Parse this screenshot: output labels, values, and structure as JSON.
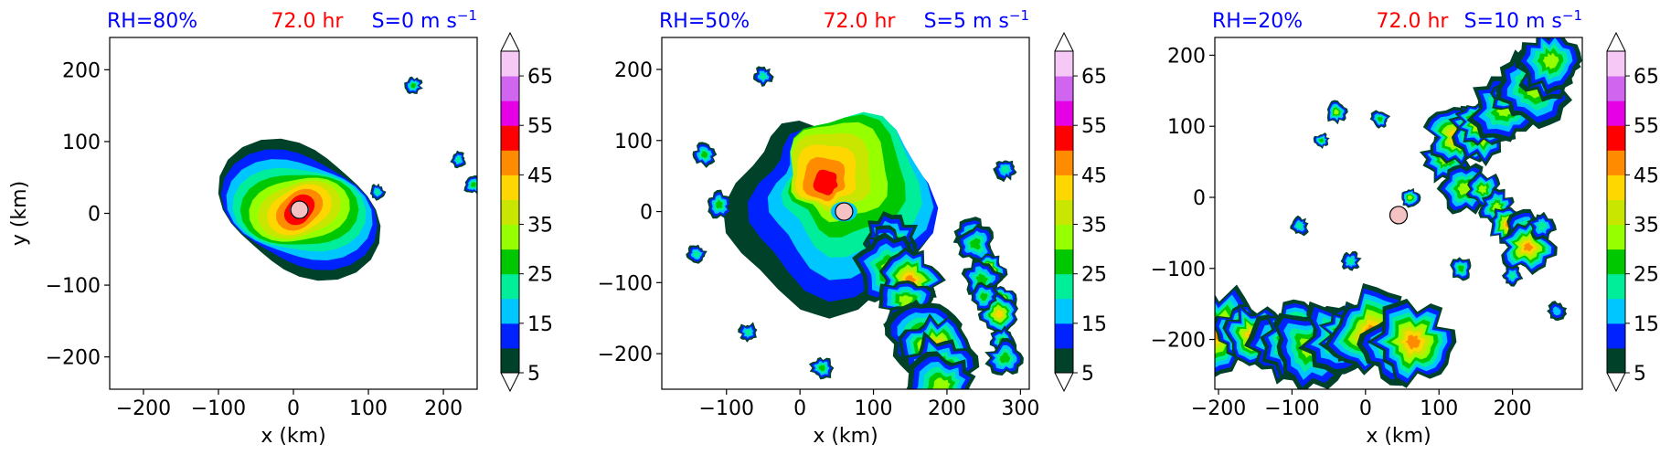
{
  "figure": {
    "panel_count": 3
  },
  "chart_data": [
    {
      "type": "heatmap",
      "title_left": "RH=80%",
      "title_center": "72.0 hr",
      "title_right_text": "S=0 m s",
      "title_right_exp": "−1",
      "xlabel": "x (km)",
      "ylabel": "y (km)",
      "xlim": [
        -245,
        245
      ],
      "ylim": [
        -245,
        245
      ],
      "xticks": [
        -200,
        -100,
        0,
        100,
        200
      ],
      "yticks": [
        -200,
        -100,
        0,
        100,
        200
      ],
      "xtick_labels": [
        "−200",
        "−100",
        "0",
        "100",
        "200"
      ],
      "ytick_labels": [
        "−200",
        "−100",
        "0",
        "100",
        "200"
      ],
      "center_marker": {
        "x": 8,
        "y": 5,
        "color": "#f4c2c2"
      },
      "features": [
        {
          "kind": "storm",
          "cx": 8,
          "cy": 5,
          "r": 108,
          "compact": true
        },
        {
          "kind": "cell",
          "x": 160,
          "y": 178,
          "r": 9,
          "level": 25
        },
        {
          "kind": "cell",
          "x": 220,
          "y": 75,
          "r": 8,
          "level": 20
        },
        {
          "kind": "cell",
          "x": 240,
          "y": 40,
          "r": 10,
          "level": 25
        },
        {
          "kind": "cell",
          "x": 112,
          "y": 30,
          "r": 8,
          "level": 20
        }
      ]
    },
    {
      "type": "heatmap",
      "title_left": "RH=50%",
      "title_center": "72.0 hr",
      "title_right_text": "S=5 m s",
      "title_right_exp": "−1",
      "xlabel": "x (km)",
      "ylabel": "",
      "xlim": [
        -188,
        312
      ],
      "ylim": [
        -250,
        245
      ],
      "xticks": [
        -100,
        0,
        100,
        200,
        300
      ],
      "yticks": [
        -200,
        -100,
        0,
        100,
        200
      ],
      "xtick_labels": [
        "−100",
        "0",
        "100",
        "200",
        "300"
      ],
      "ytick_labels": [
        "−200",
        "−100",
        "0",
        "100",
        "200"
      ],
      "center_marker": {
        "x": 60,
        "y": 0,
        "color": "#f4c2c2"
      },
      "features": [
        {
          "kind": "storm",
          "cx": 40,
          "cy": 40,
          "r": 150,
          "compact": false
        },
        {
          "kind": "band",
          "x1": 110,
          "y1": -40,
          "x2": 200,
          "y2": -240,
          "w": 70,
          "level": 30
        },
        {
          "kind": "band",
          "x1": 240,
          "y1": -30,
          "x2": 280,
          "y2": -200,
          "w": 40,
          "level": 25
        },
        {
          "kind": "cell",
          "x": -130,
          "y": 80,
          "r": 12,
          "level": 25
        },
        {
          "kind": "cell",
          "x": -110,
          "y": 10,
          "r": 14,
          "level": 25
        },
        {
          "kind": "cell",
          "x": -140,
          "y": -60,
          "r": 10,
          "level": 20
        },
        {
          "kind": "cell",
          "x": -70,
          "y": -170,
          "r": 10,
          "level": 20
        },
        {
          "kind": "cell",
          "x": -50,
          "y": 190,
          "r": 10,
          "level": 20
        },
        {
          "kind": "cell",
          "x": 30,
          "y": -220,
          "r": 12,
          "level": 25
        },
        {
          "kind": "cell",
          "x": 280,
          "y": 60,
          "r": 12,
          "level": 20
        },
        {
          "kind": "cell",
          "x": 250,
          "y": -120,
          "r": 14,
          "level": 25
        }
      ]
    },
    {
      "type": "heatmap",
      "title_left": "RH=20%",
      "title_center": "72.0 hr",
      "title_right_text": "S=10 m s",
      "title_right_exp": "−1",
      "xlabel": "x (km)",
      "ylabel": "",
      "xlim": [
        -205,
        295
      ],
      "ylim": [
        -270,
        225
      ],
      "xticks": [
        -200,
        -100,
        0,
        100,
        200
      ],
      "yticks": [
        -200,
        -100,
        0,
        100,
        200
      ],
      "xtick_labels": [
        "−200",
        "−100",
        "0",
        "100",
        "200"
      ],
      "ytick_labels": [
        "−200",
        "−100",
        "0",
        "100",
        "200"
      ],
      "center_marker": {
        "x": 45,
        "y": -25,
        "color": "#f4c2c2"
      },
      "features": [
        {
          "kind": "band",
          "x1": -200,
          "y1": -200,
          "x2": 60,
          "y2": -200,
          "w": 90,
          "level": 30
        },
        {
          "kind": "band",
          "x1": 110,
          "y1": 60,
          "x2": 260,
          "y2": 190,
          "w": 70,
          "level": 30
        },
        {
          "kind": "band",
          "x1": 130,
          "y1": 20,
          "x2": 230,
          "y2": -60,
          "w": 50,
          "level": 30
        },
        {
          "kind": "cell",
          "x": -40,
          "y": 120,
          "r": 12,
          "level": 30
        },
        {
          "kind": "cell",
          "x": 20,
          "y": 110,
          "r": 10,
          "level": 25
        },
        {
          "kind": "cell",
          "x": -60,
          "y": 80,
          "r": 8,
          "level": 25
        },
        {
          "kind": "cell",
          "x": 60,
          "y": 0,
          "r": 10,
          "level": 30
        },
        {
          "kind": "cell",
          "x": -90,
          "y": -40,
          "r": 10,
          "level": 20
        },
        {
          "kind": "cell",
          "x": -20,
          "y": -90,
          "r": 10,
          "level": 20
        },
        {
          "kind": "cell",
          "x": 240,
          "y": -40,
          "r": 14,
          "level": 20
        },
        {
          "kind": "cell",
          "x": 130,
          "y": -100,
          "r": 12,
          "level": 25
        },
        {
          "kind": "cell",
          "x": 200,
          "y": -110,
          "r": 10,
          "level": 20
        },
        {
          "kind": "cell",
          "x": 260,
          "y": -160,
          "r": 10,
          "level": 15
        }
      ]
    }
  ],
  "colorbar": {
    "ticks": [
      5,
      15,
      25,
      35,
      45,
      55,
      65
    ],
    "tick_labels": [
      "5",
      "15",
      "25",
      "35",
      "45",
      "55",
      "65"
    ],
    "levels": [
      5,
      10,
      15,
      20,
      25,
      30,
      35,
      40,
      45,
      50,
      55,
      60,
      65,
      70
    ],
    "colors": [
      "#00412a",
      "#0022ff",
      "#00c6ff",
      "#00ee9a",
      "#00c800",
      "#96ff00",
      "#c8e600",
      "#ffd700",
      "#ff8c00",
      "#ff0000",
      "#e600e6",
      "#d066f0",
      "#f5c8f5"
    ],
    "extend": "both"
  }
}
